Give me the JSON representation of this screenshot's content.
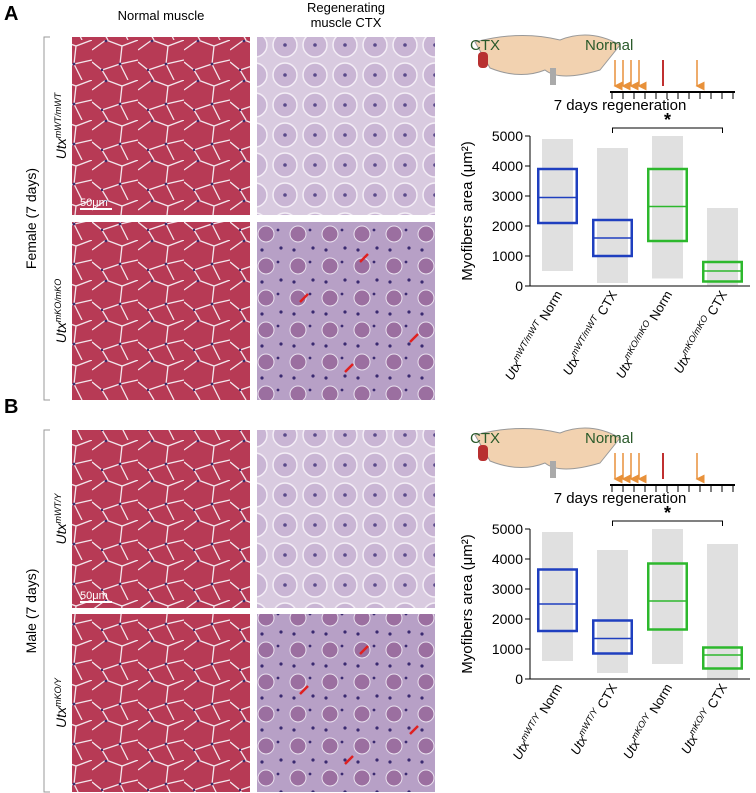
{
  "panels": [
    {
      "label": "A",
      "group_label": "Female (7 days)",
      "column_titles": [
        "Normal muscle",
        "Regenerating muscle CTX"
      ],
      "rows": [
        {
          "base": "Utx",
          "sup": "mWT/mWT"
        },
        {
          "base": "Utx",
          "sup": "mKO/mKO"
        }
      ],
      "scale_bar": "50μm",
      "diagram": {
        "injury": "CTX",
        "control": "Normal",
        "caption": "7 days regeneration"
      },
      "chart_data": {
        "type": "box",
        "y_label": "Myofibers area (μm²)",
        "ylim": [
          0,
          5000
        ],
        "yticks": [
          0,
          1000,
          2000,
          3000,
          4000,
          5000
        ],
        "significance": "*",
        "categories": [
          {
            "base": "Utx",
            "sup": "mWT/mWT",
            "suffix": "Norm"
          },
          {
            "base": "Utx",
            "sup": "mWT/mWT",
            "suffix": "CTX"
          },
          {
            "base": "Utx",
            "sup": "mKO/mKO",
            "suffix": "Norm"
          },
          {
            "base": "Utx",
            "sup": "mKO/mKO",
            "suffix": "CTX"
          }
        ],
        "colors": [
          "#1f3fbf",
          "#1f3fbf",
          "#2db82d",
          "#2db82d"
        ],
        "min": [
          500,
          100,
          250,
          0
        ],
        "q1": [
          2100,
          1000,
          1500,
          150
        ],
        "median": [
          2950,
          1600,
          2650,
          500
        ],
        "q3": [
          3900,
          2200,
          3900,
          800
        ],
        "max": [
          4900,
          4600,
          5000,
          2600
        ]
      }
    },
    {
      "label": "B",
      "group_label": "Male (7 days)",
      "rows": [
        {
          "base": "Utx",
          "sup": "mWT/Y"
        },
        {
          "base": "Utx",
          "sup": "mKO/Y"
        }
      ],
      "scale_bar": "50μm",
      "diagram": {
        "injury": "CTX",
        "control": "Normal",
        "caption": "7 days regeneration"
      },
      "chart_data": {
        "type": "box",
        "y_label": "Myofibers area (μm²)",
        "ylim": [
          0,
          5000
        ],
        "yticks": [
          0,
          1000,
          2000,
          3000,
          4000,
          5000
        ],
        "significance": "*",
        "categories": [
          {
            "base": "Utx",
            "sup": "mWT/Y",
            "suffix": "Norm"
          },
          {
            "base": "Utx",
            "sup": "mWT/Y",
            "suffix": "CTX"
          },
          {
            "base": "Utx",
            "sup": "mKO/Y",
            "suffix": "Norm"
          },
          {
            "base": "Utx",
            "sup": "mKO/Y",
            "suffix": "CTX"
          }
        ],
        "colors": [
          "#1f3fbf",
          "#1f3fbf",
          "#2db82d",
          "#2db82d"
        ],
        "min": [
          600,
          200,
          500,
          0
        ],
        "q1": [
          1600,
          850,
          1650,
          350
        ],
        "median": [
          2500,
          1350,
          2600,
          800
        ],
        "q3": [
          3650,
          1950,
          3850,
          1050
        ],
        "max": [
          4900,
          4300,
          5000,
          4500
        ]
      }
    }
  ]
}
